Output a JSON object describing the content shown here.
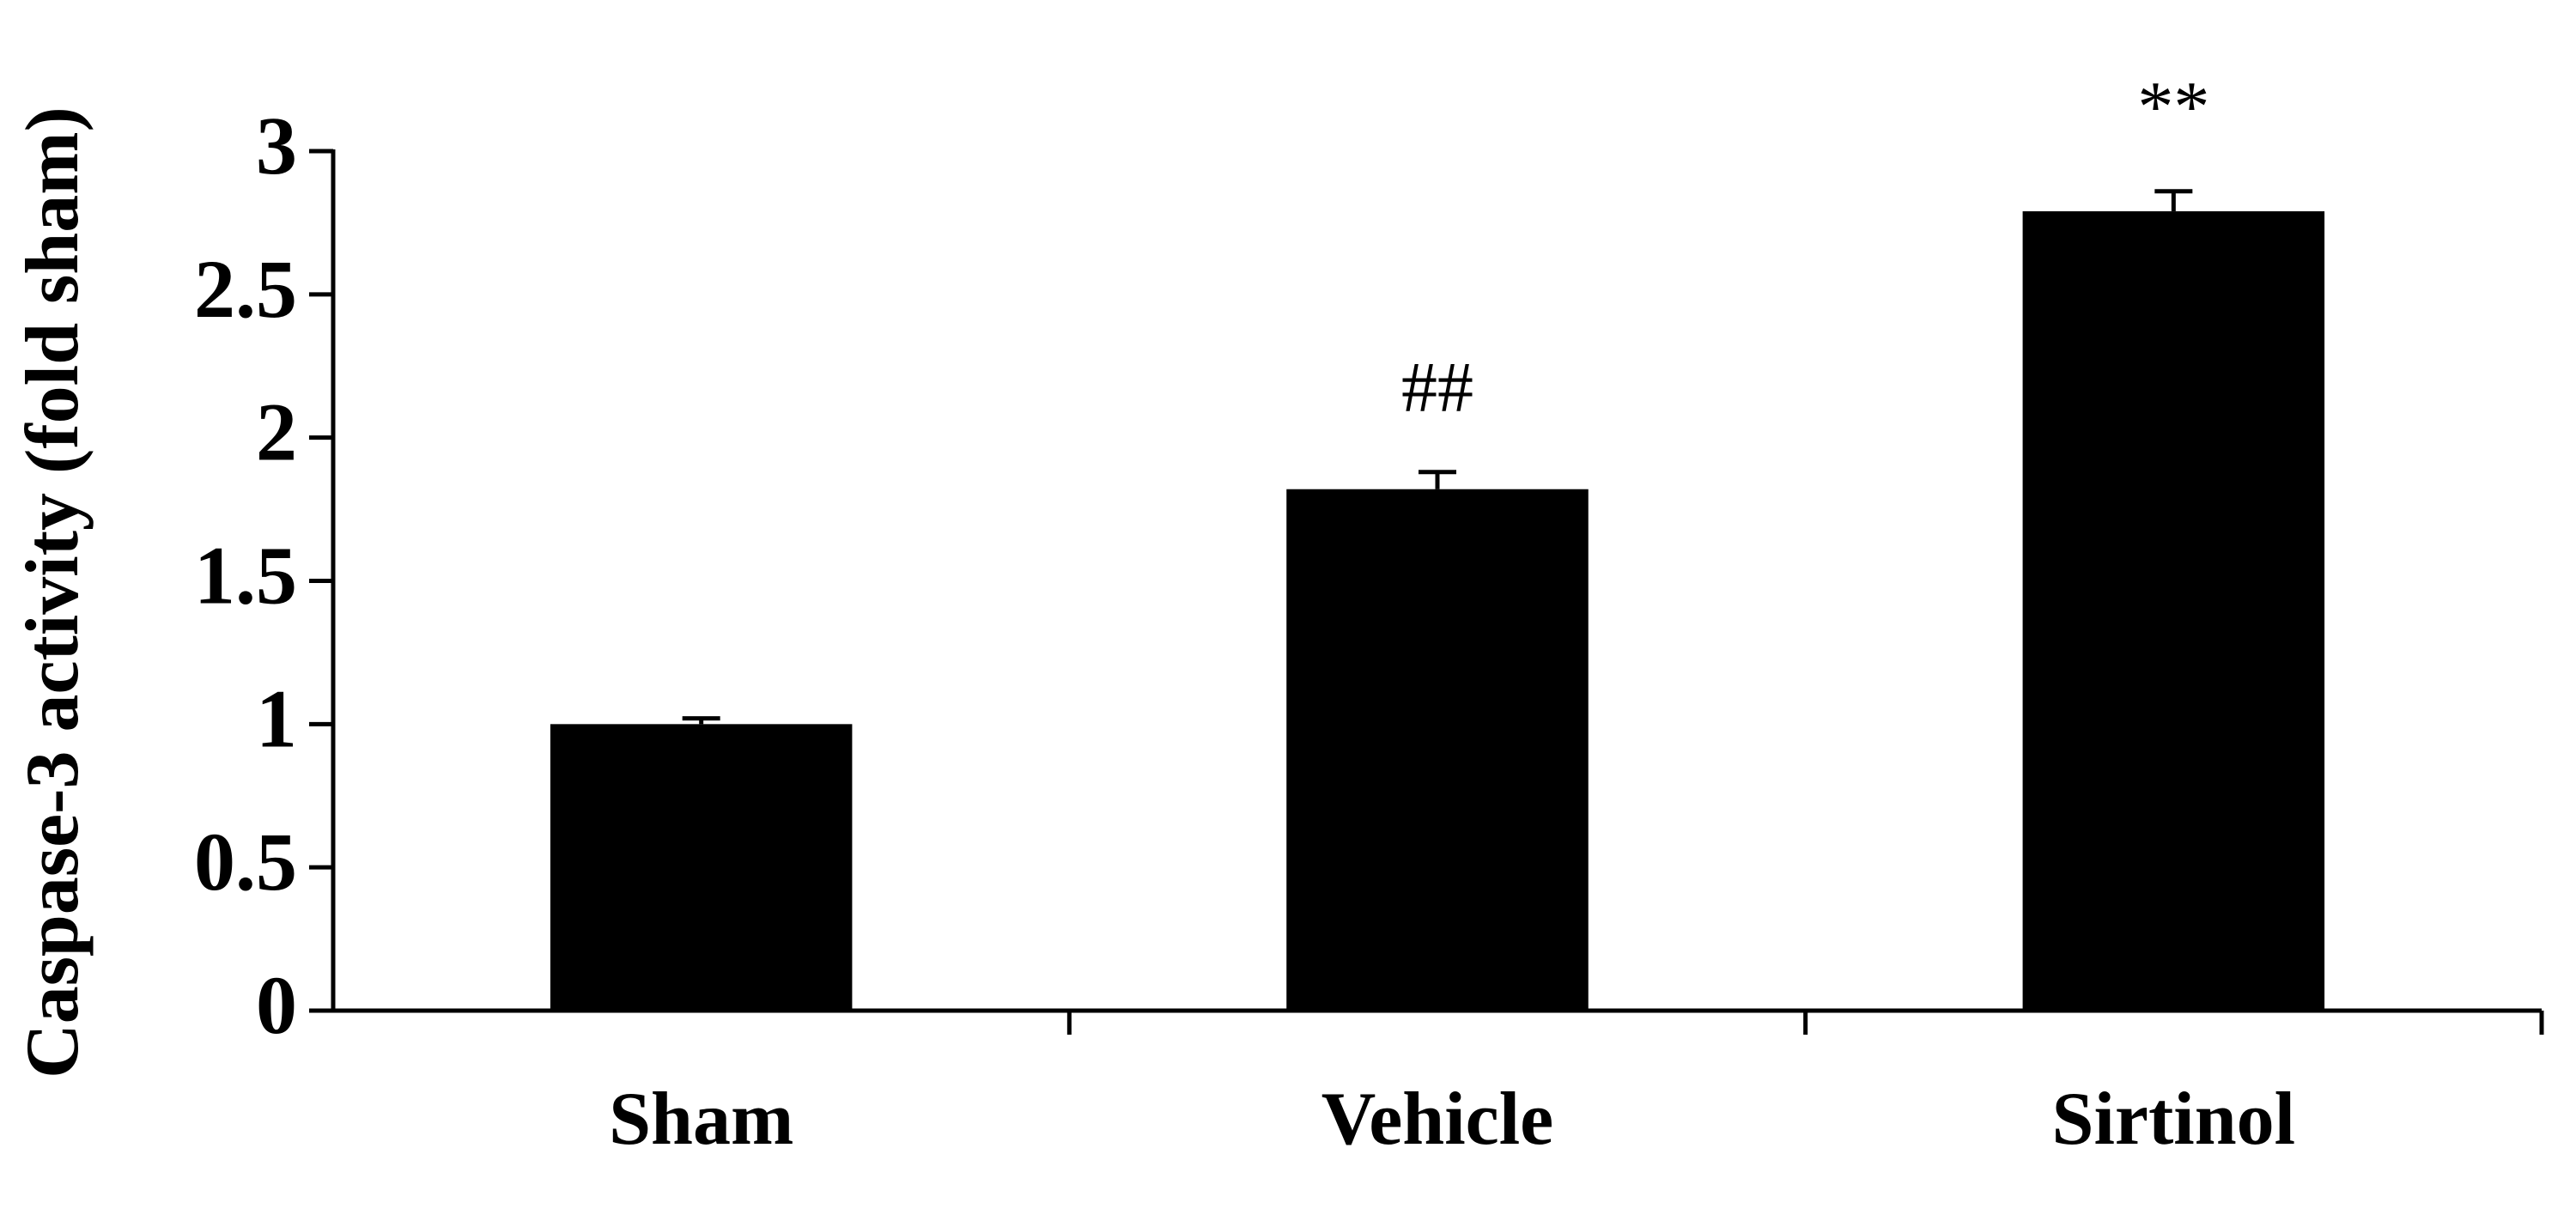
{
  "chart_data": {
    "type": "bar",
    "ylabel": "Caspase-3 activity (fold sham)",
    "categories": [
      "Sham",
      "Vehicle",
      "Sirtinol"
    ],
    "values": [
      1.0,
      1.82,
      2.79
    ],
    "errors": [
      0.02,
      0.06,
      0.07
    ],
    "value_annotations": [
      null,
      "##",
      "**"
    ],
    "color": "#000000",
    "ylim": [
      0,
      3
    ],
    "yticks": [
      0,
      0.5,
      1,
      1.5,
      2,
      2.5,
      3
    ],
    "grid": false
  }
}
